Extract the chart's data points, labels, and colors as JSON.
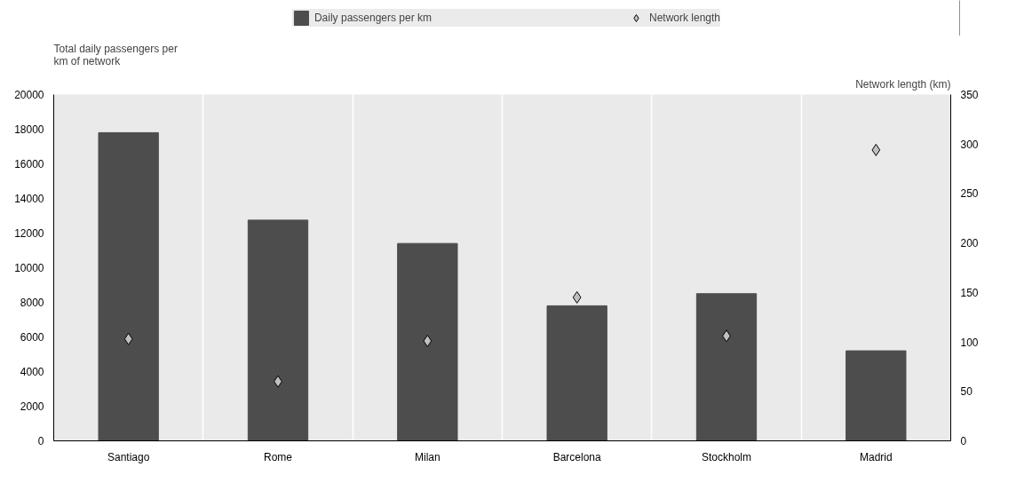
{
  "chart_data": {
    "type": "bar",
    "categories": [
      "Santiago",
      "Rome",
      "Milan",
      "Barcelona",
      "Stockholm",
      "Madrid"
    ],
    "ylabel": "Total daily passengers per\nkm of network",
    "y2label": "Network length (km)",
    "series": [
      {
        "name": "Daily passengers per km",
        "color": "#4d4d4d",
        "values": [
          17800,
          12750,
          11400,
          7800,
          8500,
          5200
        ]
      },
      {
        "name": "Network length",
        "type": "scatter",
        "axis": "y2",
        "marker": "diamond",
        "color": "#c0c0c0",
        "values": [
          103,
          60,
          101,
          145,
          106,
          294
        ]
      }
    ],
    "ylim": [
      0,
      20000
    ],
    "yticks": [
      0,
      2000,
      4000,
      6000,
      8000,
      10000,
      12000,
      14000,
      16000,
      18000,
      20000
    ],
    "y2lim": [
      0,
      350
    ],
    "y2ticks": [
      0,
      50,
      100,
      150,
      200,
      250,
      300,
      350
    ],
    "grid": "x",
    "legend": "top"
  }
}
